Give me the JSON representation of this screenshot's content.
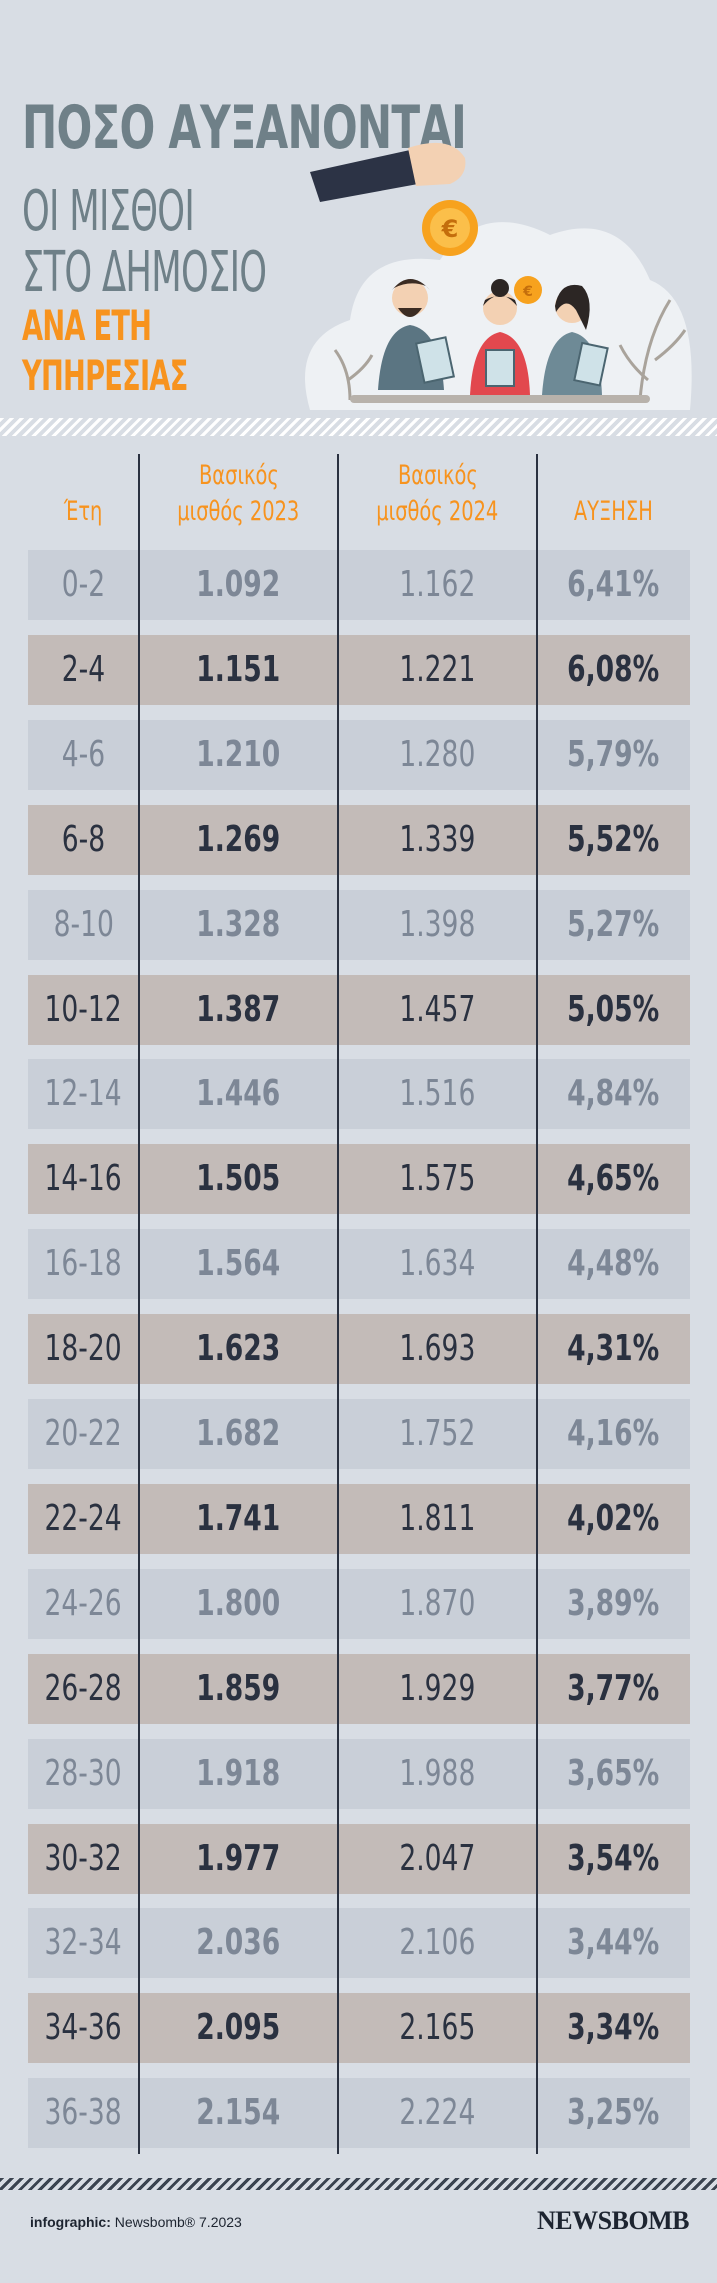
{
  "title": {
    "line1": "ΠΟΣΟ ΑΥΞΑΝΟΝΤΑΙ",
    "line2": "ΟΙ ΜΙΣΘΟΙ",
    "line3": "ΣΤΟ ΔΗΜΟΣΙΟ",
    "line4": "ΑΝΑ ΕΤΗ",
    "line5": "ΥΠΗΡΕΣΙΑΣ"
  },
  "illustration": {
    "coin_symbol": "€",
    "colors": {
      "orange": "#f7931e",
      "slate": "#6f8088"
    }
  },
  "table": {
    "headers": {
      "years": "Έτη",
      "base2023_l1": "Βασικός",
      "base2023_l2": "μισθός 2023",
      "base2024_l1": "Βασικός",
      "base2024_l2": "μισθός 2024",
      "increase": "ΑΥΞΗΣΗ"
    },
    "rows": [
      {
        "years": "0-2",
        "s2023": "1.092",
        "s2024": "1.162",
        "increase": "6,41%"
      },
      {
        "years": "2-4",
        "s2023": "1.151",
        "s2024": "1.221",
        "increase": "6,08%"
      },
      {
        "years": "4-6",
        "s2023": "1.210",
        "s2024": "1.280",
        "increase": "5,79%"
      },
      {
        "years": "6-8",
        "s2023": "1.269",
        "s2024": "1.339",
        "increase": "5,52%"
      },
      {
        "years": "8-10",
        "s2023": "1.328",
        "s2024": "1.398",
        "increase": "5,27%"
      },
      {
        "years": "10-12",
        "s2023": "1.387",
        "s2024": "1.457",
        "increase": "5,05%"
      },
      {
        "years": "12-14",
        "s2023": "1.446",
        "s2024": "1.516",
        "increase": "4,84%"
      },
      {
        "years": "14-16",
        "s2023": "1.505",
        "s2024": "1.575",
        "increase": "4,65%"
      },
      {
        "years": "16-18",
        "s2023": "1.564",
        "s2024": "1.634",
        "increase": "4,48%"
      },
      {
        "years": "18-20",
        "s2023": "1.623",
        "s2024": "1.693",
        "increase": "4,31%"
      },
      {
        "years": "20-22",
        "s2023": "1.682",
        "s2024": "1.752",
        "increase": "4,16%"
      },
      {
        "years": "22-24",
        "s2023": "1.741",
        "s2024": "1.811",
        "increase": "4,02%"
      },
      {
        "years": "24-26",
        "s2023": "1.800",
        "s2024": "1.870",
        "increase": "3,89%"
      },
      {
        "years": "26-28",
        "s2023": "1.859",
        "s2024": "1.929",
        "increase": "3,77%"
      },
      {
        "years": "28-30",
        "s2023": "1.918",
        "s2024": "1.988",
        "increase": "3,65%"
      },
      {
        "years": "30-32",
        "s2023": "1.977",
        "s2024": "2.047",
        "increase": "3,54%"
      },
      {
        "years": "32-34",
        "s2023": "2.036",
        "s2024": "2.106",
        "increase": "3,44%"
      },
      {
        "years": "34-36",
        "s2023": "2.095",
        "s2024": "2.165",
        "increase": "3,34%"
      },
      {
        "years": "36-38",
        "s2023": "2.154",
        "s2024": "2.224",
        "increase": "3,25%"
      }
    ]
  },
  "footer": {
    "credit_label": "infographic:",
    "credit_source": "Newsbomb® 7.2023",
    "brand": "NEWSBOMB"
  }
}
